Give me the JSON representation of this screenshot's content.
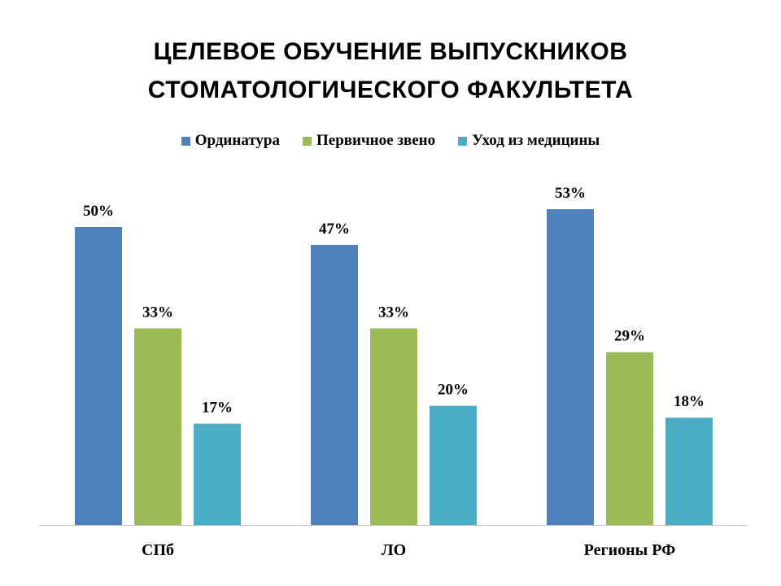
{
  "chart_data": {
    "type": "bar",
    "title_line1": "ЦЕЛЕВОЕ ОБУЧЕНИЕ ВЫПУСКНИКОВ",
    "title_line2": "СТОМАТОЛОГИЧЕСКОГО ФАКУЛЬТЕТА",
    "categories": [
      "СПб",
      "ЛО",
      "Регионы РФ"
    ],
    "series": [
      {
        "name": "Ординатура",
        "color": "#4F81BD",
        "values": [
          50,
          47,
          53
        ],
        "labels": [
          "50%",
          "47%",
          "53%"
        ]
      },
      {
        "name": "Первичное звено",
        "color": "#9BBB59",
        "values": [
          33,
          33,
          29
        ],
        "labels": [
          "33%",
          "33%",
          "29%"
        ]
      },
      {
        "name": "Уход из медицины",
        "color": "#4BACC6",
        "values": [
          17,
          20,
          18
        ],
        "labels": [
          "17%",
          "20%",
          "18%"
        ]
      }
    ],
    "unit": "%",
    "ylim": [
      0,
      60
    ],
    "grid": false,
    "legend_position": "top"
  }
}
